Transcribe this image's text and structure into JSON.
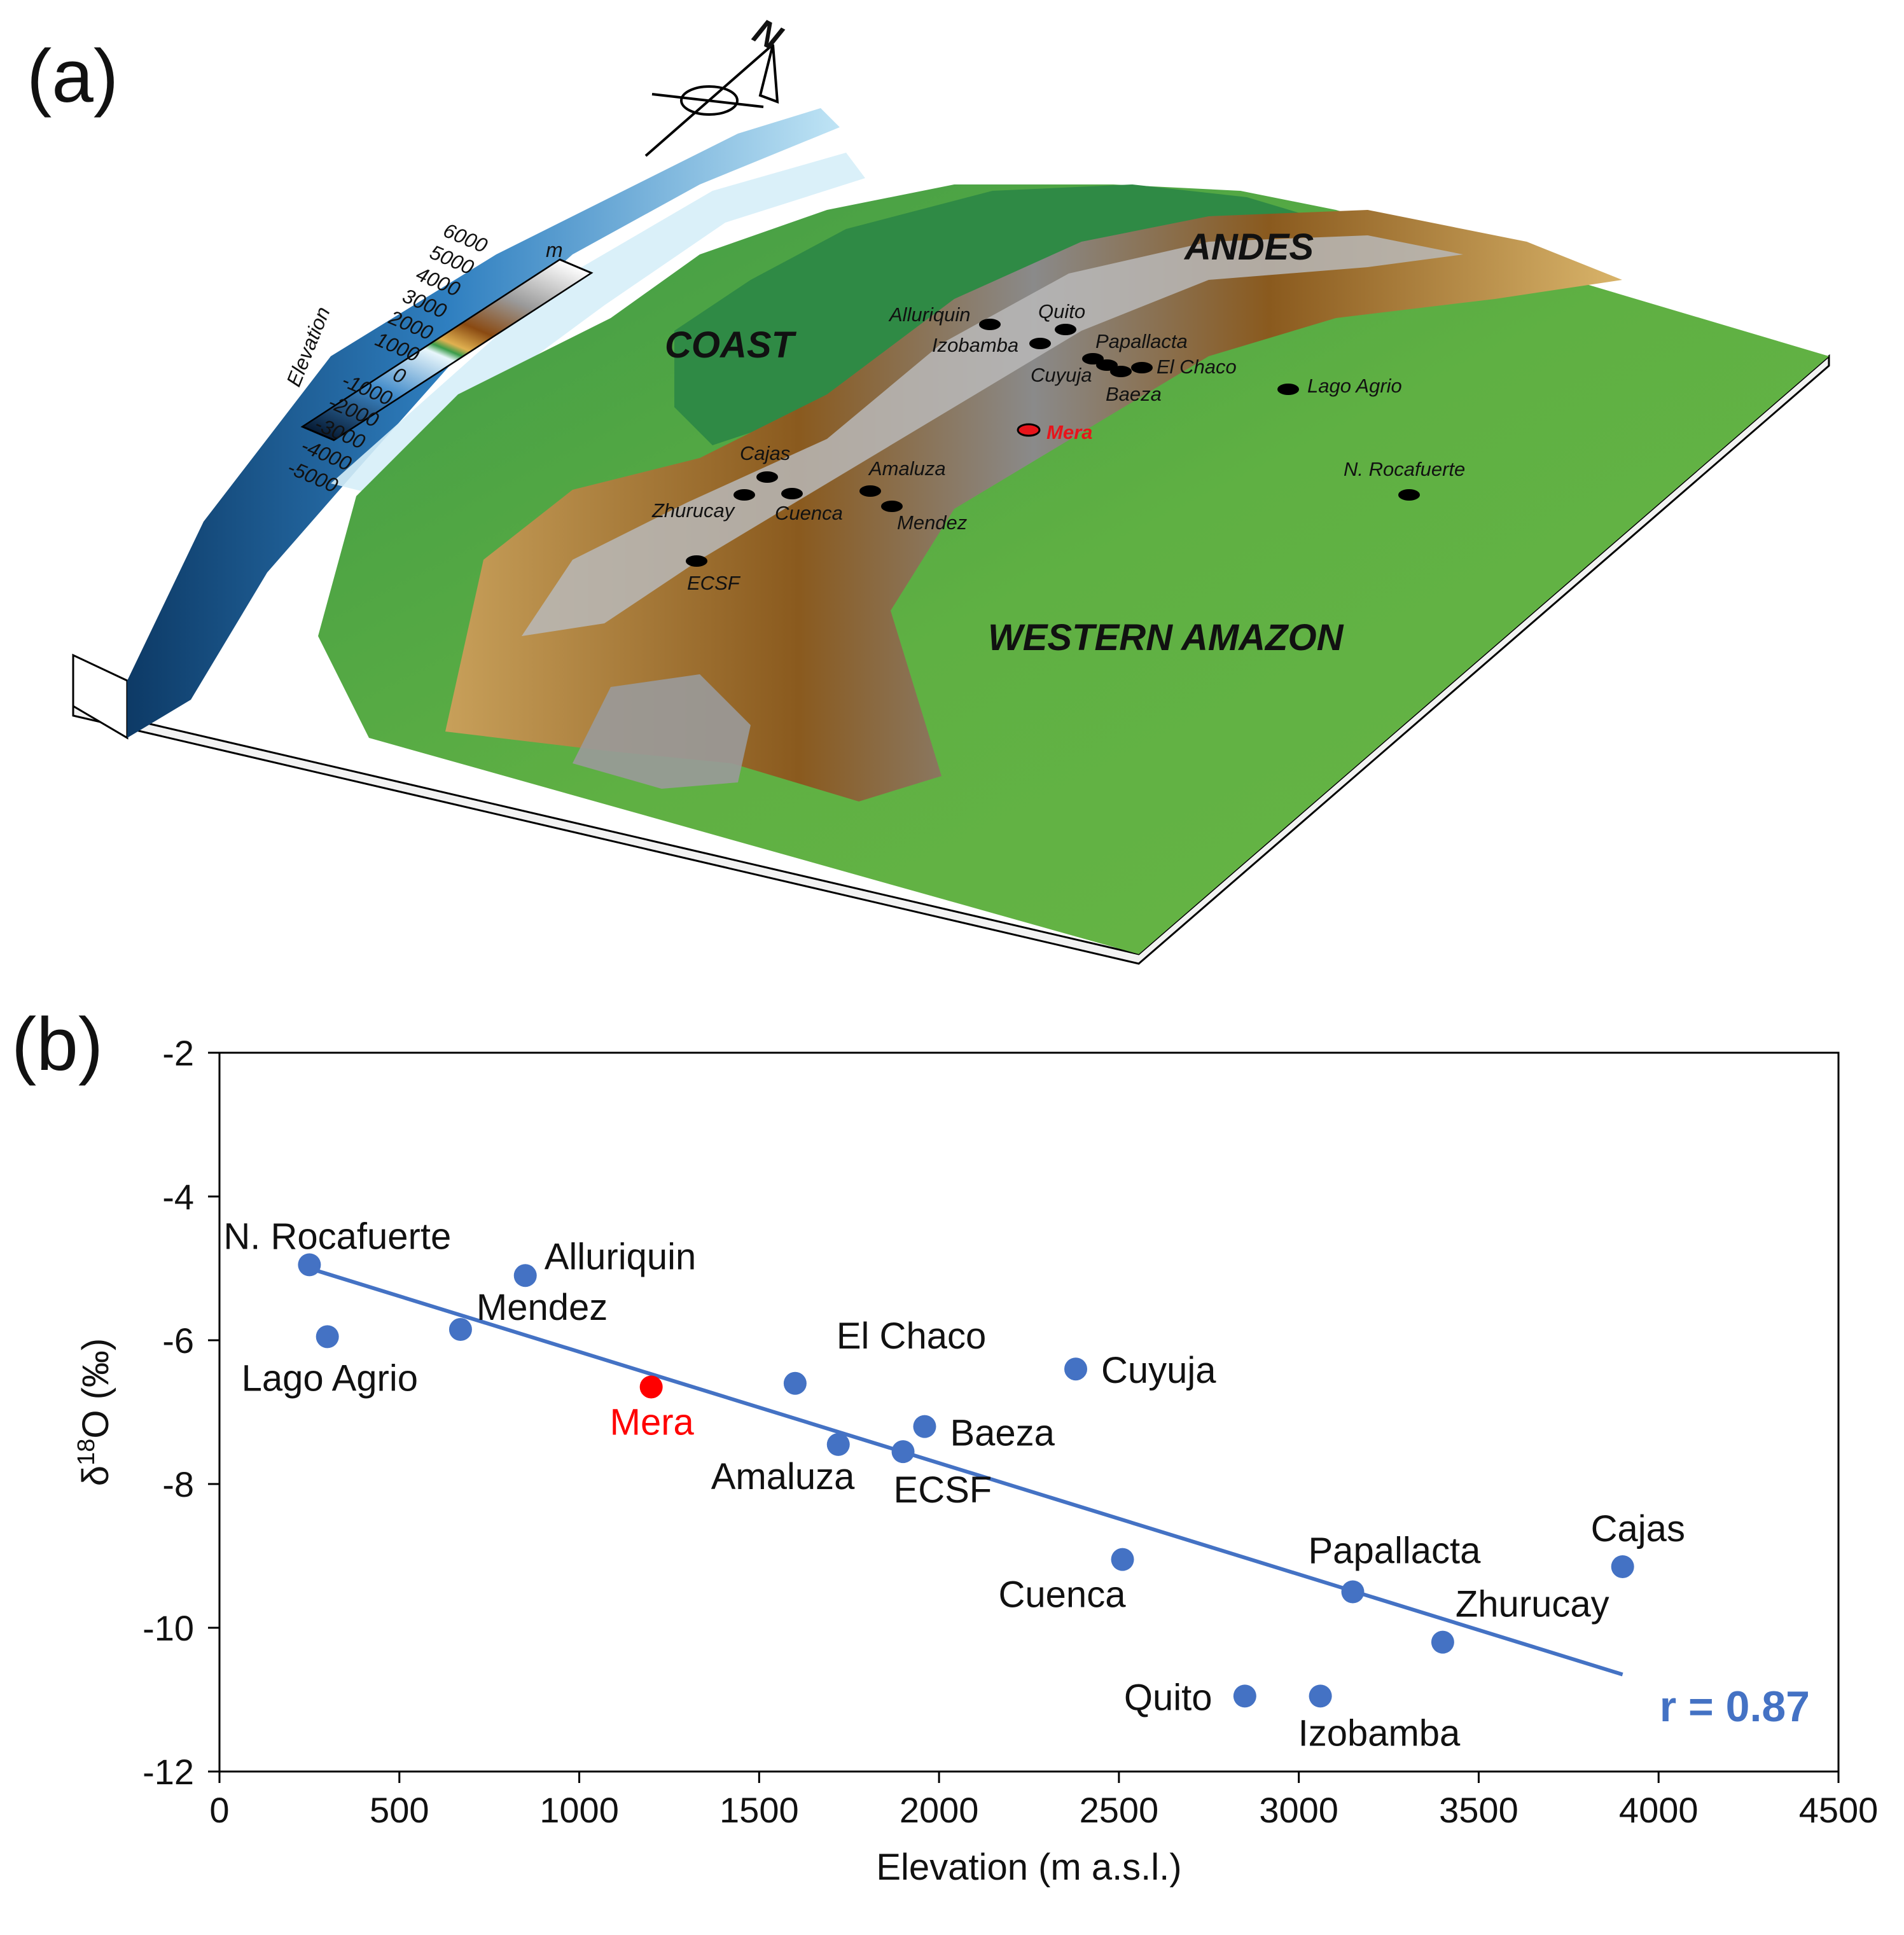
{
  "panel_a": {
    "letter": "(a)",
    "north": "N",
    "colorbar": {
      "title": "Elevation",
      "unit": "m",
      "ticks": [
        "6000",
        "5000",
        "4000",
        "3000",
        "2000",
        "1000",
        "0",
        "-1000",
        "-2000",
        "-3000",
        "-4000",
        "-5000"
      ]
    },
    "regions": {
      "coast": "COAST",
      "andes": "ANDES",
      "amazon": "WESTERN AMAZON"
    },
    "sites": [
      {
        "name": "Alluriquin"
      },
      {
        "name": "Quito"
      },
      {
        "name": "Izobamba"
      },
      {
        "name": "Papallacta"
      },
      {
        "name": "Cuyuja"
      },
      {
        "name": "El Chaco"
      },
      {
        "name": "Baeza"
      },
      {
        "name": "Lago Agrio"
      },
      {
        "name": "Mera",
        "color": "#e8141b"
      },
      {
        "name": "Cajas"
      },
      {
        "name": "Amaluza"
      },
      {
        "name": "Zhurucay"
      },
      {
        "name": "Cuenca"
      },
      {
        "name": "Mendez"
      },
      {
        "name": "N. Rocafuerte"
      },
      {
        "name": "ECSF"
      }
    ]
  },
  "panel_b": {
    "letter": "(b)"
  },
  "colors": {
    "point": "#4472c4",
    "highlight": "#ff0000",
    "fit_line": "#4472c4",
    "r_text": "#4472c4"
  },
  "chart_data": {
    "type": "scatter",
    "xlabel": "Elevation (m a.s.l.)",
    "ylabel": "δ18O (‰)",
    "xlim": [
      0,
      4500
    ],
    "ylim": [
      -12,
      -2
    ],
    "xticks": [
      0,
      500,
      1000,
      1500,
      2000,
      2500,
      3000,
      3500,
      4000,
      4500
    ],
    "yticks": [
      -12,
      -10,
      -8,
      -6,
      -4,
      -2
    ],
    "grid": false,
    "points": [
      {
        "label": "N. Rocafuerte",
        "x": 250,
        "y": -4.95
      },
      {
        "label": "Lago Agrio",
        "x": 300,
        "y": -5.95
      },
      {
        "label": "Mendez",
        "x": 670,
        "y": -5.85
      },
      {
        "label": "Alluriquin",
        "x": 850,
        "y": -5.1
      },
      {
        "label": "Mera",
        "x": 1200,
        "y": -6.65,
        "highlight": true
      },
      {
        "label": "El Chaco",
        "x": 1600,
        "y": -6.6
      },
      {
        "label": "Amaluza",
        "x": 1720,
        "y": -7.45
      },
      {
        "label": "ECSF",
        "x": 1900,
        "y": -7.55
      },
      {
        "label": "Baeza",
        "x": 1960,
        "y": -7.2
      },
      {
        "label": "Cuyuja",
        "x": 2380,
        "y": -6.4
      },
      {
        "label": "Cuenca",
        "x": 2510,
        "y": -9.05
      },
      {
        "label": "Quito",
        "x": 2850,
        "y": -10.95
      },
      {
        "label": "Izobamba",
        "x": 3060,
        "y": -10.95
      },
      {
        "label": "Papallacta",
        "x": 3150,
        "y": -9.5
      },
      {
        "label": "Zhurucay",
        "x": 3400,
        "y": -10.2
      },
      {
        "label": "Cajas",
        "x": 3900,
        "y": -9.15
      }
    ],
    "fit_line": {
      "x": [
        250,
        3900
      ],
      "y": [
        -5.0,
        -10.65
      ]
    },
    "annotation": "r = 0.87"
  }
}
